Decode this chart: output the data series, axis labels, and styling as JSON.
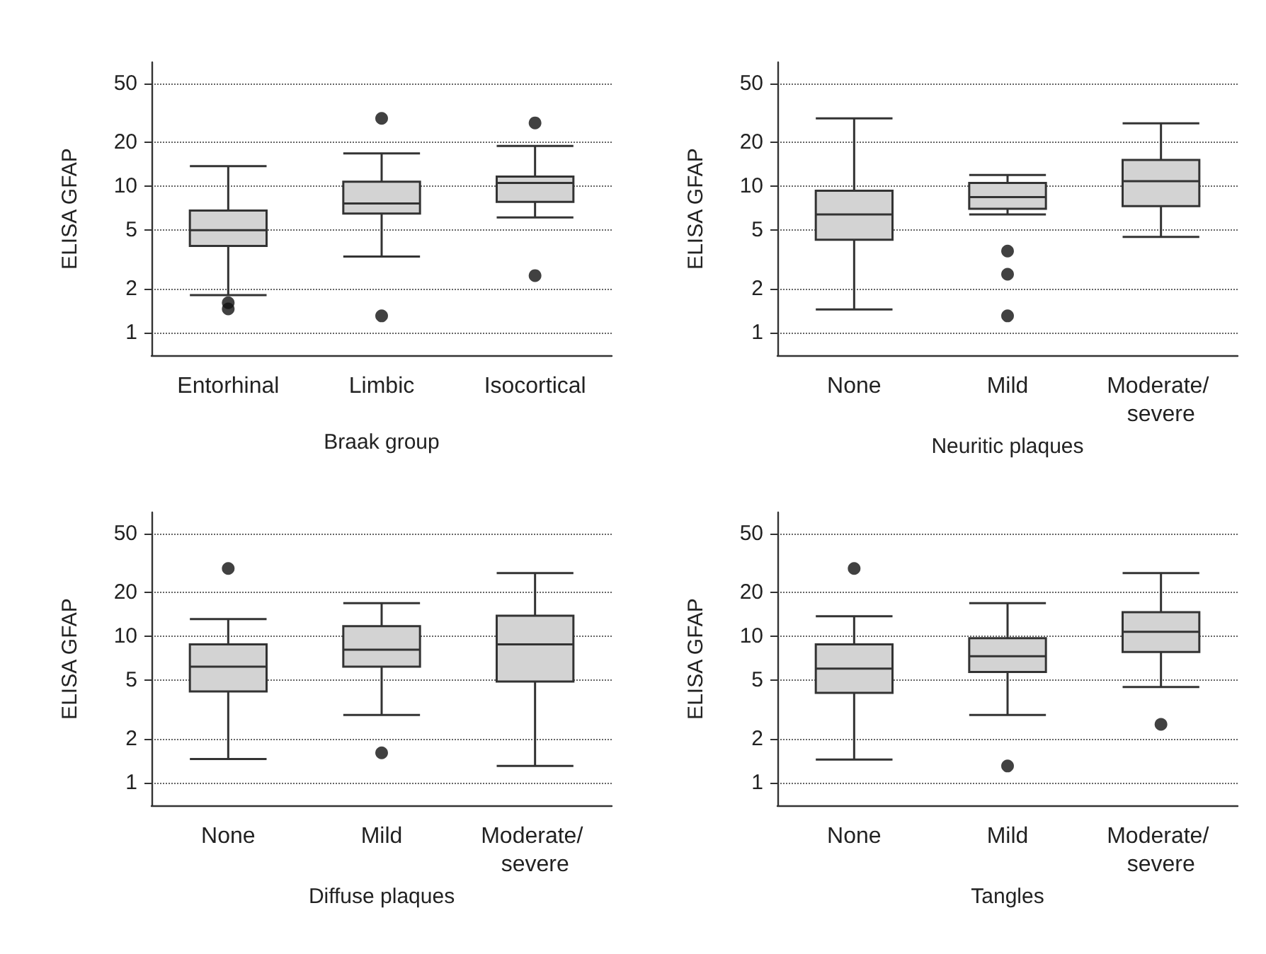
{
  "chart_data": [
    {
      "type": "box",
      "xlabel": "Braak group",
      "ylabel": "ELISA GFAP",
      "categories": [
        "Entorhinal",
        "Limbic",
        "Isocortical"
      ],
      "color": "#d3d3d3",
      "log": true,
      "grid": "y",
      "ylim": [
        0.7,
        70
      ],
      "yticks": [
        1,
        2,
        5,
        10,
        20,
        50
      ],
      "boxes": [
        {
          "low": 1.8,
          "q1": 3.9,
          "median": 5.0,
          "q3": 6.8,
          "high": 13.7,
          "outliers": [
            1.6,
            1.45
          ]
        },
        {
          "low": 3.3,
          "q1": 6.5,
          "median": 7.6,
          "q3": 10.7,
          "high": 16.7,
          "outliers": [
            29,
            1.3
          ]
        },
        {
          "low": 6.1,
          "q1": 7.8,
          "median": 10.5,
          "q3": 11.6,
          "high": 18.8,
          "outliers": [
            27,
            2.45
          ]
        }
      ]
    },
    {
      "type": "box",
      "xlabel": "Neuritic plaques",
      "ylabel": "ELISA GFAP",
      "categories": [
        "None",
        "Mild",
        "Moderate/ severe"
      ],
      "color": "#d3d3d3",
      "log": true,
      "grid": "y",
      "ylim": [
        0.7,
        70
      ],
      "yticks": [
        1,
        2,
        5,
        10,
        20,
        50
      ],
      "boxes": [
        {
          "low": 1.44,
          "q1": 4.3,
          "median": 6.4,
          "q3": 9.3,
          "high": 29
        },
        {
          "low": 6.4,
          "q1": 7.0,
          "median": 8.4,
          "q3": 10.5,
          "high": 11.9,
          "outliers": [
            3.6,
            2.5,
            1.3
          ]
        },
        {
          "low": 4.5,
          "q1": 7.3,
          "median": 10.8,
          "q3": 15.1,
          "high": 26.8
        }
      ]
    },
    {
      "type": "box",
      "xlabel": "Diffuse plaques",
      "ylabel": "ELISA GFAP",
      "categories": [
        "None",
        "Mild",
        "Moderate/ severe"
      ],
      "color": "#d3d3d3",
      "log": true,
      "grid": "y",
      "ylim": [
        0.7,
        70
      ],
      "yticks": [
        1,
        2,
        5,
        10,
        20,
        50
      ],
      "boxes": [
        {
          "low": 1.45,
          "q1": 4.2,
          "median": 6.2,
          "q3": 8.8,
          "high": 13.1,
          "outliers": [
            29
          ]
        },
        {
          "low": 2.9,
          "q1": 6.2,
          "median": 8.1,
          "q3": 11.7,
          "high": 16.8,
          "outliers": [
            1.6
          ]
        },
        {
          "low": 1.3,
          "q1": 4.9,
          "median": 8.8,
          "q3": 13.8,
          "high": 27
        }
      ]
    },
    {
      "type": "box",
      "xlabel": "Tangles",
      "ylabel": "ELISA GFAP",
      "categories": [
        "None",
        "Mild",
        "Moderate/ severe"
      ],
      "color": "#d3d3d3",
      "log": true,
      "grid": "y",
      "ylim": [
        0.7,
        70
      ],
      "yticks": [
        1,
        2,
        5,
        10,
        20,
        50
      ],
      "boxes": [
        {
          "low": 1.44,
          "q1": 4.1,
          "median": 6.0,
          "q3": 8.8,
          "high": 13.7,
          "outliers": [
            29
          ]
        },
        {
          "low": 2.9,
          "q1": 5.7,
          "median": 7.3,
          "q3": 9.7,
          "high": 16.8,
          "outliers": [
            1.3
          ]
        },
        {
          "low": 4.5,
          "q1": 7.8,
          "median": 10.7,
          "q3": 14.6,
          "high": 27,
          "outliers": [
            2.5
          ]
        }
      ]
    }
  ]
}
